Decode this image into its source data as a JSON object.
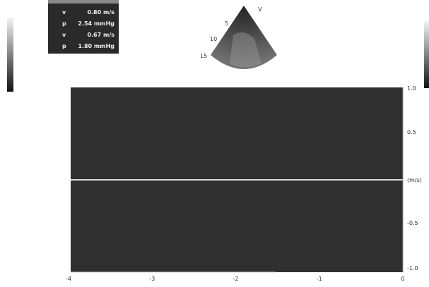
{
  "measurements": [
    {
      "label": "v",
      "value": "0.80 m/s"
    },
    {
      "label": "p",
      "value": "2.54 mmHg"
    },
    {
      "label": "v",
      "value": "0.67 m/s"
    },
    {
      "label": "p",
      "value": "1.80 mmHg"
    }
  ],
  "sector": {
    "marker": "V",
    "depths": [
      "5",
      "10",
      "15"
    ]
  },
  "spectrum": {
    "velocity_labels": [
      "1.0",
      "0.5",
      "(m/s)",
      "-0.5",
      "-1.0"
    ],
    "time_labels": [
      "-4",
      "-3",
      "-2",
      "-1",
      "0"
    ]
  }
}
